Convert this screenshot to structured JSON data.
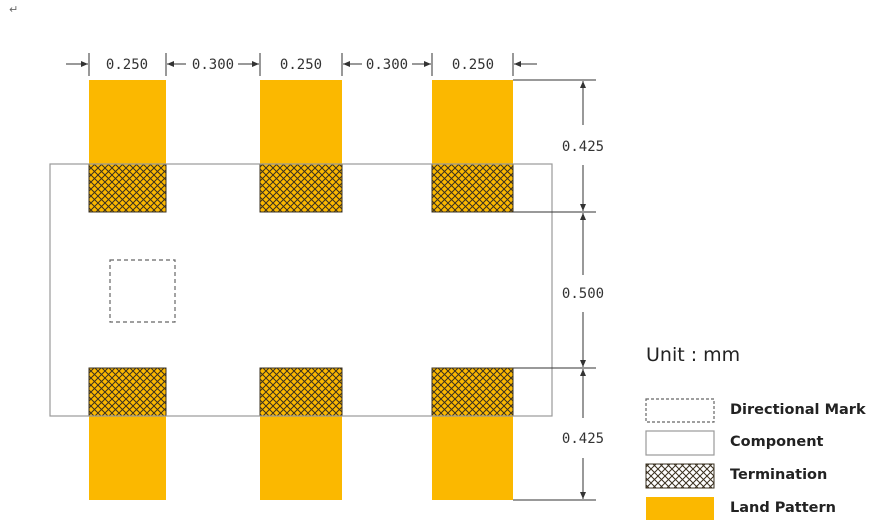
{
  "diagram": {
    "return_mark": "↵",
    "dimensions": {
      "top": [
        "0.250",
        "0.300",
        "0.250",
        "0.300",
        "0.250"
      ],
      "right": [
        "0.425",
        "0.500",
        "0.425"
      ]
    }
  },
  "legend": {
    "title": "Unit : mm",
    "items": [
      {
        "label": "Directional Mark",
        "icon": "dashed-box"
      },
      {
        "label": "Component",
        "icon": "solid-box"
      },
      {
        "label": "Termination",
        "icon": "crosshatch-box"
      },
      {
        "label": "Land Pattern",
        "icon": "filled-box"
      }
    ]
  },
  "colors": {
    "land_pattern": "#FBB800",
    "hatch": "#3a3020",
    "component_outline": "#9a9a9a",
    "dimension_line": "#333333"
  }
}
